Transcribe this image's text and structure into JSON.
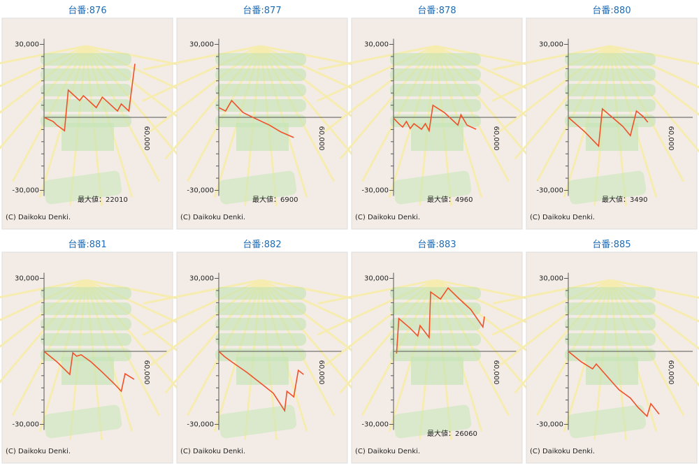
{
  "chart_data": [
    {
      "type": "line",
      "title": "台番:876",
      "color": "#f0502a",
      "x": [
        0,
        6000,
        8500,
        13500,
        16000,
        23500,
        26000,
        34500,
        38500,
        48500,
        51000,
        56000,
        60000
      ],
      "values": [
        0,
        -1700,
        -3200,
        -5500,
        11200,
        6900,
        8900,
        4000,
        8300,
        2600,
        5500,
        2600,
        22010
      ],
      "ylim": [
        -30000,
        30000
      ],
      "yticks": [
        {
          "value": -30000,
          "label": "-30,000"
        },
        {
          "value": 30000,
          "label": "30,000"
        }
      ],
      "minor_yticks": [
        -25000,
        -20000,
        -15000,
        -10000,
        -5000,
        5000,
        10000,
        15000,
        20000,
        25000
      ],
      "xlim": [
        0,
        60000
      ],
      "xticks": [
        {
          "value": 60000,
          "label": "60,000"
        }
      ],
      "annotation": "最大値：22010",
      "footer": "(C) Daikoku Denki."
    },
    {
      "type": "line",
      "title": "台番:877",
      "color": "#f0502a",
      "x": [
        0,
        4500,
        8500,
        16000,
        23500,
        33500,
        41000,
        49500
      ],
      "values": [
        4000,
        2600,
        6900,
        2000,
        -300,
        -3200,
        -6000,
        -8300
      ],
      "ylim": [
        -30000,
        30000
      ],
      "yticks": [
        {
          "value": -30000,
          "label": "-30,000"
        },
        {
          "value": 30000,
          "label": "30,000"
        }
      ],
      "minor_yticks": [
        -25000,
        -20000,
        -15000,
        -10000,
        -5000,
        5000,
        10000,
        15000,
        20000,
        25000
      ],
      "xlim": [
        0,
        60000
      ],
      "xticks": [
        {
          "value": 60000,
          "label": "60,000"
        }
      ],
      "annotation": "最大値：6900",
      "footer": "(C) Daikoku Denki."
    },
    {
      "type": "line",
      "title": "台番:878",
      "color": "#f0502a",
      "x": [
        0,
        3500,
        6000,
        8500,
        11000,
        13500,
        18500,
        21000,
        23500,
        26000,
        33500,
        42500,
        44500,
        48500,
        54500
      ],
      "values": [
        -300,
        -2600,
        -4000,
        -1700,
        -4600,
        -2600,
        -4900,
        -2600,
        -5500,
        4960,
        2000,
        -3200,
        1100,
        -3200,
        -4900
      ],
      "ylim": [
        -30000,
        30000
      ],
      "yticks": [
        {
          "value": -30000,
          "label": "-30,000"
        },
        {
          "value": 30000,
          "label": "30,000"
        }
      ],
      "minor_yticks": [
        -25000,
        -20000,
        -15000,
        -10000,
        -5000,
        5000,
        10000,
        15000,
        20000,
        25000
      ],
      "xlim": [
        0,
        60000
      ],
      "xticks": [
        {
          "value": 60000,
          "label": "60,000"
        }
      ],
      "annotation": "最大値：4960",
      "footer": "(C) Daikoku Denki."
    },
    {
      "type": "line",
      "title": "台番:880",
      "color": "#f0502a",
      "x": [
        0,
        11000,
        20000,
        22500,
        28500,
        36000,
        41000,
        45000,
        49500,
        52500
      ],
      "values": [
        0,
        -6000,
        -11800,
        3490,
        300,
        -3700,
        -7500,
        2600,
        300,
        -2000
      ],
      "ylim": [
        -30000,
        30000
      ],
      "yticks": [
        {
          "value": -30000,
          "label": "-30,000"
        },
        {
          "value": 30000,
          "label": "30,000"
        }
      ],
      "minor_yticks": [
        -25000,
        -20000,
        -15000,
        -10000,
        -5000,
        5000,
        10000,
        15000,
        20000,
        25000
      ],
      "xlim": [
        0,
        60000
      ],
      "xticks": [
        {
          "value": 60000,
          "label": "60,000"
        }
      ],
      "annotation": "最大値：3490",
      "footer": "(C) Daikoku Denki."
    },
    {
      "type": "line",
      "title": "台番:881",
      "color": "#f0502a",
      "x": [
        0,
        8500,
        17000,
        19000,
        21500,
        24500,
        31000,
        38500,
        46000,
        51000,
        53500,
        59500
      ],
      "values": [
        0,
        -4300,
        -9500,
        -600,
        -2000,
        -1400,
        -4300,
        -8600,
        -13100,
        -16400,
        -9200,
        -11500
      ],
      "ylim": [
        -30000,
        30000
      ],
      "yticks": [
        {
          "value": -30000,
          "label": "-30,000"
        },
        {
          "value": 30000,
          "label": "30,000"
        }
      ],
      "minor_yticks": [
        -25000,
        -20000,
        -15000,
        -10000,
        -5000,
        5000,
        10000,
        15000,
        20000,
        25000
      ],
      "xlim": [
        0,
        60000
      ],
      "xticks": [
        {
          "value": 60000,
          "label": "60,000"
        }
      ],
      "footer": "(C) Daikoku Denki."
    },
    {
      "type": "line",
      "title": "台番:882",
      "color": "#f0502a",
      "x": [
        0,
        3500,
        8500,
        18500,
        28500,
        36000,
        43500,
        45000,
        49500,
        52500,
        56000
      ],
      "values": [
        0,
        -2000,
        -4300,
        -8600,
        -13500,
        -17200,
        -24400,
        -16400,
        -18700,
        -7800,
        -9500
      ],
      "ylim": [
        -30000,
        30000
      ],
      "yticks": [
        {
          "value": -30000,
          "label": "-30,000"
        },
        {
          "value": 30000,
          "label": "30,000"
        }
      ],
      "minor_yticks": [
        -25000,
        -20000,
        -15000,
        -10000,
        -5000,
        5000,
        10000,
        15000,
        20000,
        25000
      ],
      "xlim": [
        0,
        60000
      ],
      "xticks": [
        {
          "value": 60000,
          "label": "60,000"
        }
      ],
      "footer": "(C) Daikoku Denki."
    },
    {
      "type": "line",
      "title": "台番:883",
      "color": "#f0502a",
      "x": [
        2000,
        3500,
        11000,
        16000,
        17500,
        23500,
        24500,
        31000,
        36000,
        43500,
        51000,
        59000,
        60000
      ],
      "values": [
        -900,
        13500,
        9500,
        6300,
        10600,
        5700,
        24400,
        21500,
        26060,
        21500,
        17200,
        10000,
        14300
      ],
      "ylim": [
        -30000,
        30000
      ],
      "yticks": [
        {
          "value": -30000,
          "label": "-30,000"
        },
        {
          "value": 30000,
          "label": "30,000"
        }
      ],
      "minor_yticks": [
        -25000,
        -20000,
        -15000,
        -10000,
        -5000,
        5000,
        10000,
        15000,
        20000,
        25000
      ],
      "xlim": [
        0,
        60000
      ],
      "xticks": [
        {
          "value": 60000,
          "label": "60,000"
        }
      ],
      "annotation": "最大値：26060",
      "footer": "(C) Daikoku Denki."
    },
    {
      "type": "line",
      "title": "台番:885",
      "color": "#f0502a",
      "x": [
        0,
        8500,
        16000,
        18500,
        28500,
        33500,
        41000,
        46000,
        52000,
        54500,
        60000
      ],
      "values": [
        0,
        -4300,
        -7200,
        -5200,
        -12300,
        -15800,
        -19200,
        -23000,
        -26700,
        -21500,
        -25800
      ],
      "ylim": [
        -30000,
        30000
      ],
      "yticks": [
        {
          "value": -30000,
          "label": "-30,000"
        },
        {
          "value": 30000,
          "label": "30,000"
        }
      ],
      "minor_yticks": [
        -25000,
        -20000,
        -15000,
        -10000,
        -5000,
        5000,
        10000,
        15000,
        20000,
        25000
      ],
      "xlim": [
        0,
        60000
      ],
      "xticks": [
        {
          "value": 60000,
          "label": "60,000"
        }
      ],
      "footer": "(C) Daikoku Denki."
    }
  ]
}
